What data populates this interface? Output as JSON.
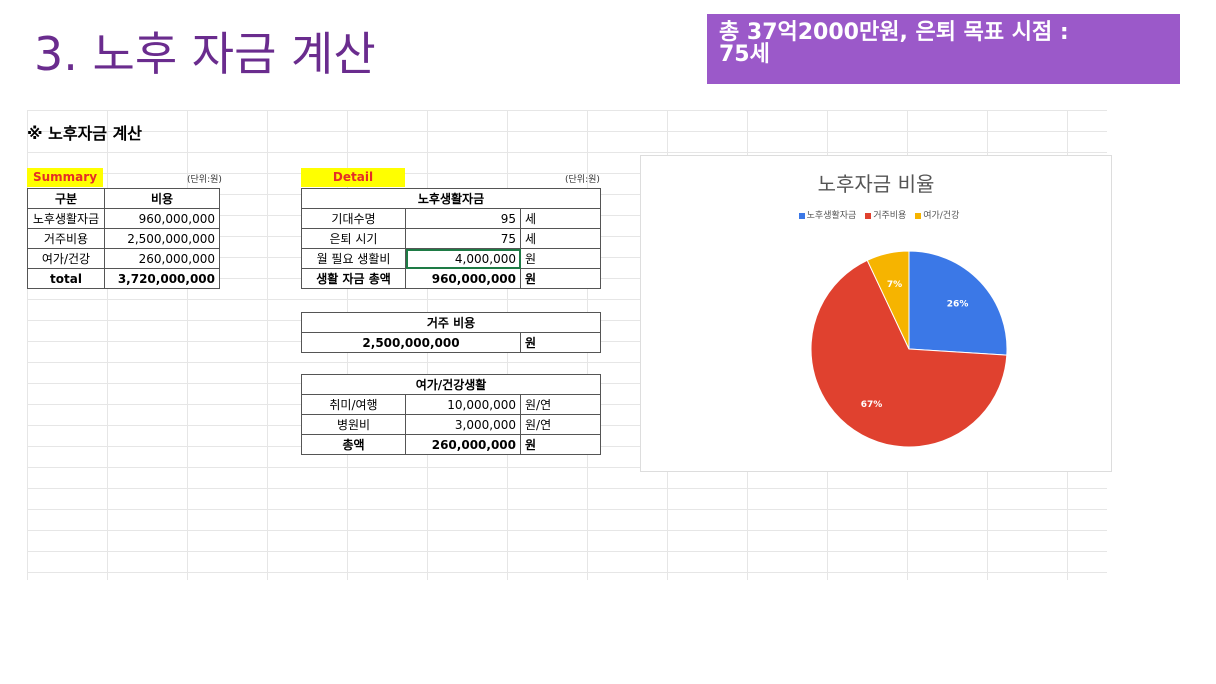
{
  "title": "3. 노후 자금 계산",
  "banner": {
    "line1": "총 37억2000만원, 은퇴 목표 시점 :",
    "line2": "75세"
  },
  "sheet": {
    "heading": "※ 노후자금 계산",
    "summary": {
      "label": "Summary",
      "unit": "(단위:원)",
      "headers": [
        "구분",
        "비용"
      ],
      "rows": [
        {
          "item": "노후생활자금",
          "cost": "960,000,000"
        },
        {
          "item": "거주비용",
          "cost": "2,500,000,000"
        },
        {
          "item": "여가/건강",
          "cost": "260,000,000"
        }
      ],
      "total_label": "total",
      "total_value": "3,720,000,000"
    },
    "detail": {
      "label": "Detail",
      "unit": "(단위:원)",
      "living": {
        "header": "노후생활자금",
        "rows": [
          {
            "item": "기대수명",
            "value": "95",
            "unit": "세"
          },
          {
            "item": "은퇴 시기",
            "value": "75",
            "unit": "세"
          },
          {
            "item": "월 필요 생활비",
            "value": "4,000,000",
            "unit": "원"
          },
          {
            "item": "생활 자금 총액",
            "value": "960,000,000",
            "unit": "원"
          }
        ]
      },
      "housing": {
        "header": "거주 비용",
        "value": "2,500,000,000",
        "unit": "원"
      },
      "leisure": {
        "header": "여가/건강생활",
        "rows": [
          {
            "item": "취미/여행",
            "value": "10,000,000",
            "unit": "원/연"
          },
          {
            "item": "병원비",
            "value": "3,000,000",
            "unit": "원/연"
          },
          {
            "item": "총액",
            "value": "260,000,000",
            "unit": "원"
          }
        ]
      }
    }
  },
  "chart_data": {
    "type": "pie",
    "title": "노후자금 비율",
    "categories": [
      "노후생활자금",
      "거주비용",
      "여가/건강"
    ],
    "values": [
      26,
      67,
      7
    ],
    "labels": [
      "26%",
      "67%",
      "7%"
    ],
    "colors": [
      "#3b78e7",
      "#e0412f",
      "#f6b400"
    ],
    "legend_position": "top"
  }
}
